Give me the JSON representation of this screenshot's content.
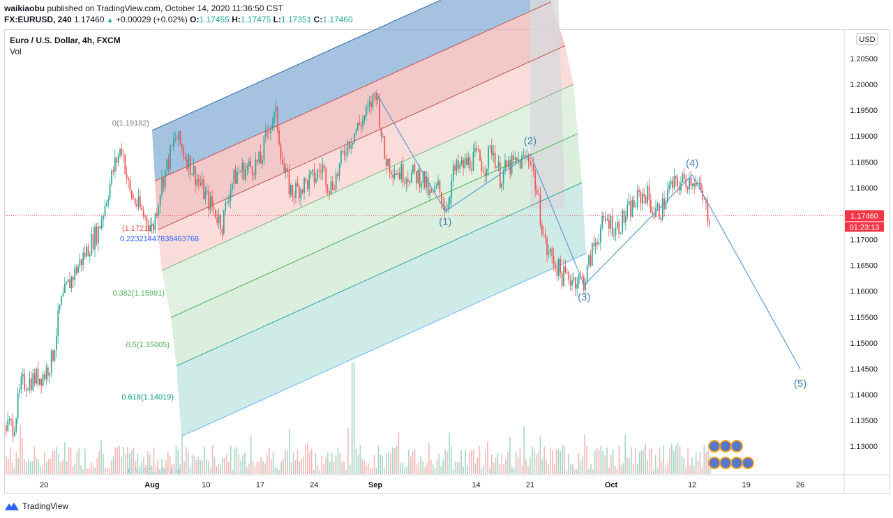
{
  "header": {
    "author": "waikiaobu",
    "published_text": "published on TradingView.com, October 14, 2020 11:36:50 CST"
  },
  "ohlc": {
    "symbol": "FX:EURUSD, 240",
    "last": "1.17460",
    "change": "+0.00029 (+0.02%)",
    "o_label": "O:",
    "o": "1.17455",
    "h_label": "H:",
    "h": "1.17475",
    "l_label": "L:",
    "l": "1.17351",
    "c_label": "C:",
    "c": "1.17460"
  },
  "legend": {
    "title": "Euro / U.S. Dollar, 4h, FXCM",
    "vol": "Vol"
  },
  "currency_button": "USD",
  "price_tag": "1.17460",
  "countdown_tag": "01:23:13",
  "footer": {
    "brand": "TradingView"
  },
  "colors": {
    "up": "#26a69a",
    "down": "#ef5350",
    "wave": "#5b9bd5",
    "price_line": "#f23645"
  },
  "chart_data": {
    "type": "candlestick",
    "title": "Euro / U.S. Dollar, 4h, FXCM",
    "xlabel": "",
    "ylabel": "",
    "ylim": [
      1.1245,
      1.2085
    ],
    "y_ticks": [
      "1.20500",
      "1.20000",
      "1.19500",
      "1.19000",
      "1.18500",
      "1.18000",
      "1.17500",
      "1.17000",
      "1.16500",
      "1.16000",
      "1.15500",
      "1.15000",
      "1.14500",
      "1.14000",
      "1.13500",
      "1.13000"
    ],
    "x_ticks": [
      "20",
      "Aug",
      "10",
      "17",
      "24",
      "Sep",
      "7",
      "14",
      "21",
      "Oct",
      "12",
      "19",
      "26"
    ],
    "price_path": [
      [
        "2020-07-16",
        1.134
      ],
      [
        "2020-07-17",
        1.142
      ],
      [
        "2020-07-20",
        1.144
      ],
      [
        "2020-07-21",
        1.147
      ],
      [
        "2020-07-22",
        1.157
      ],
      [
        "2020-07-23",
        1.161
      ],
      [
        "2020-07-24",
        1.164
      ],
      [
        "2020-07-27",
        1.172
      ],
      [
        "2020-07-28",
        1.178
      ],
      [
        "2020-07-29",
        1.184
      ],
      [
        "2020-07-30",
        1.188
      ],
      [
        "2020-07-31",
        1.179
      ],
      [
        "2020-08-03",
        1.172
      ],
      [
        "2020-08-04",
        1.18
      ],
      [
        "2020-08-06",
        1.19
      ],
      [
        "2020-08-10",
        1.178
      ],
      [
        "2020-08-12",
        1.173
      ],
      [
        "2020-08-13",
        1.18
      ],
      [
        "2020-08-14",
        1.183
      ],
      [
        "2020-08-17",
        1.185
      ],
      [
        "2020-08-18",
        1.192
      ],
      [
        "2020-08-19",
        1.194
      ],
      [
        "2020-08-20",
        1.183
      ],
      [
        "2020-08-21",
        1.179
      ],
      [
        "2020-08-24",
        1.182
      ],
      [
        "2020-08-25",
        1.184
      ],
      [
        "2020-08-26",
        1.18
      ],
      [
        "2020-08-27",
        1.183
      ],
      [
        "2020-08-28",
        1.188
      ],
      [
        "2020-08-31",
        1.195
      ],
      [
        "2020-09-01",
        1.199
      ],
      [
        "2020-09-02",
        1.186
      ],
      [
        "2020-09-03",
        1.184
      ],
      [
        "2020-09-04",
        1.183
      ],
      [
        "2020-09-07",
        1.182
      ],
      [
        "2020-09-08",
        1.178
      ],
      [
        "2020-09-09",
        1.18
      ],
      [
        "2020-09-10",
        1.176
      ],
      [
        "2020-09-11",
        1.183
      ],
      [
        "2020-09-14",
        1.186
      ],
      [
        "2020-09-15",
        1.184
      ],
      [
        "2020-09-16",
        1.188
      ],
      [
        "2020-09-17",
        1.182
      ],
      [
        "2020-09-18",
        1.184
      ],
      [
        "2020-09-21",
        1.186
      ],
      [
        "2020-09-22",
        1.177
      ],
      [
        "2020-09-23",
        1.168
      ],
      [
        "2020-09-24",
        1.166
      ],
      [
        "2020-09-25",
        1.163
      ],
      [
        "2020-09-28",
        1.162
      ],
      [
        "2020-09-29",
        1.168
      ],
      [
        "2020-09-30",
        1.172
      ],
      [
        "2020-10-01",
        1.174
      ],
      [
        "2020-10-02",
        1.172
      ],
      [
        "2020-10-05",
        1.178
      ],
      [
        "2020-10-06",
        1.179
      ],
      [
        "2020-10-07",
        1.175
      ],
      [
        "2020-10-08",
        1.176
      ],
      [
        "2020-10-09",
        1.18
      ],
      [
        "2020-10-12",
        1.182
      ],
      [
        "2020-10-13",
        1.179
      ],
      [
        "2020-10-14",
        1.1746
      ]
    ],
    "fib_retracement": {
      "levels": [
        {
          "label": "0(1.19182)",
          "color": "#787b86"
        },
        {
          "label": "0.2232144783846376 8",
          "color": "#ef5350"
        },
        {
          "label": "(1.17210)",
          "color": "#ef5350"
        },
        {
          "label": "0.22321447838463768",
          "color": "#2962ff"
        },
        {
          "label": "0.382(1.15991)",
          "color": "#4caf50"
        },
        {
          "label": "0.5(1.15005)",
          "color": "#4caf50"
        },
        {
          "label": "0.618(1.14019)",
          "color": "#089981"
        },
        {
          "label": "0.786(1.12616)",
          "color": "#64b5f6"
        }
      ]
    },
    "elliott_wave": {
      "points": [
        {
          "label": "",
          "date": "2020-09-01",
          "price": 1.1985
        },
        {
          "label": "(1)",
          "date": "2020-09-10",
          "price": 1.1755
        },
        {
          "label": "(2)",
          "date": "2020-09-21",
          "price": 1.1865
        },
        {
          "label": "(3)",
          "date": "2020-09-28",
          "price": 1.1612
        },
        {
          "label": "(4)",
          "date": "2020-10-12",
          "price": 1.1825
        },
        {
          "label": "(5)",
          "date": "2020-10-26",
          "price": 1.145
        }
      ]
    },
    "volume": {
      "baseline_note": ""
    },
    "grid": false,
    "current_price": 1.1746
  }
}
